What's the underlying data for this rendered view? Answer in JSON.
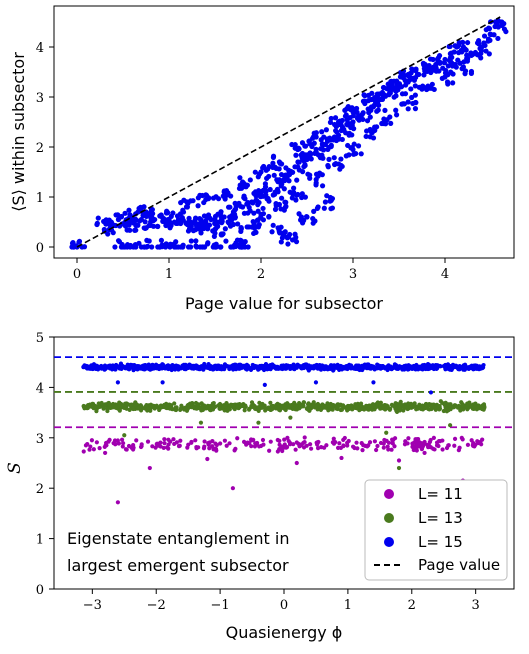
{
  "chart_data": [
    {
      "type": "scatter",
      "xlabel": "Page value for subsector",
      "ylabel": "⟨S⟩ within subsector",
      "xlim": [
        -0.25,
        4.75
      ],
      "ylim": [
        -0.22,
        4.82
      ],
      "xticks": [
        "0",
        "1",
        "2",
        "3",
        "4"
      ],
      "yticks": [
        "0",
        "1",
        "2",
        "3",
        "4"
      ],
      "grid": false,
      "colors": {
        "points": "#0000ee",
        "reference": "#000000"
      },
      "reference_line": {
        "style": "dashed",
        "x": [
          0,
          4.6
        ],
        "y": [
          0,
          4.6
        ]
      },
      "points": [
        [
          0.0,
          0.0
        ],
        [
          0.3,
          0.5
        ],
        [
          0.35,
          0.35
        ],
        [
          0.45,
          0.55
        ],
        [
          0.55,
          0.45
        ],
        [
          0.6,
          0.6
        ],
        [
          0.7,
          0.55
        ],
        [
          0.75,
          0.7
        ],
        [
          0.8,
          0.5
        ],
        [
          0.9,
          0.62
        ],
        [
          1.0,
          0.55
        ],
        [
          1.1,
          0.5
        ],
        [
          1.2,
          0.45
        ],
        [
          1.3,
          0.42
        ],
        [
          1.4,
          0.5
        ],
        [
          1.5,
          0.55
        ],
        [
          1.6,
          0.6
        ],
        [
          1.7,
          0.7
        ],
        [
          1.8,
          0.8
        ],
        [
          1.9,
          0.9
        ],
        [
          2.0,
          1.05
        ],
        [
          2.1,
          1.15
        ],
        [
          2.2,
          1.3
        ],
        [
          2.3,
          1.45
        ],
        [
          2.4,
          1.6
        ],
        [
          2.5,
          1.75
        ],
        [
          2.6,
          1.9
        ],
        [
          2.7,
          2.05
        ],
        [
          2.8,
          2.2
        ],
        [
          2.9,
          2.35
        ],
        [
          3.0,
          2.5
        ],
        [
          3.1,
          2.65
        ],
        [
          3.2,
          2.8
        ],
        [
          3.3,
          2.95
        ],
        [
          3.4,
          3.1
        ],
        [
          3.5,
          3.2
        ],
        [
          3.6,
          3.3
        ],
        [
          3.7,
          3.45
        ],
        [
          3.8,
          3.55
        ],
        [
          3.9,
          3.65
        ],
        [
          4.0,
          3.75
        ],
        [
          4.1,
          3.9
        ],
        [
          4.2,
          4.0
        ],
        [
          4.3,
          3.85
        ],
        [
          4.4,
          4.0
        ],
        [
          4.5,
          4.25
        ],
        [
          4.58,
          4.4
        ],
        [
          1.5,
          0.35
        ],
        [
          1.7,
          0.45
        ],
        [
          2.0,
          0.65
        ],
        [
          2.2,
          0.85
        ],
        [
          2.4,
          1.05
        ],
        [
          2.6,
          1.35
        ],
        [
          2.8,
          1.65
        ],
        [
          3.0,
          1.95
        ],
        [
          3.2,
          2.3
        ],
        [
          3.4,
          2.6
        ],
        [
          3.6,
          2.9
        ],
        [
          3.8,
          3.15
        ],
        [
          4.0,
          3.4
        ],
        [
          4.2,
          3.6
        ],
        [
          1.2,
          0.8
        ],
        [
          1.4,
          0.95
        ],
        [
          1.6,
          1.1
        ],
        [
          1.8,
          1.3
        ],
        [
          2.0,
          1.5
        ],
        [
          2.2,
          1.7
        ],
        [
          2.4,
          1.95
        ],
        [
          2.6,
          2.2
        ],
        [
          2.8,
          2.45
        ],
        [
          3.0,
          2.7
        ],
        [
          3.2,
          2.95
        ],
        [
          3.4,
          3.2
        ],
        [
          3.6,
          3.45
        ],
        [
          0.5,
          0.0
        ],
        [
          0.7,
          0.0
        ],
        [
          0.9,
          0.0
        ],
        [
          1.1,
          0.0
        ],
        [
          1.3,
          0.0
        ],
        [
          1.5,
          0.0
        ],
        [
          1.7,
          0.0
        ],
        [
          1.8,
          0.0
        ],
        [
          1.9,
          0.4
        ],
        [
          2.2,
          0.3
        ],
        [
          2.3,
          0.2
        ],
        [
          2.5,
          0.6
        ],
        [
          2.7,
          0.9
        ]
      ]
    },
    {
      "type": "scatter",
      "xlabel": "Quasienergy ϕ",
      "ylabel": "S",
      "xlim": [
        -3.6,
        3.6
      ],
      "ylim": [
        0,
        5
      ],
      "xticks": [
        "−3",
        "−2",
        "−1",
        "0",
        "1",
        "2",
        "3"
      ],
      "yticks": [
        "0",
        "1",
        "2",
        "3",
        "4",
        "5"
      ],
      "grid": false,
      "legend_position": "bottom-right",
      "annotation": [
        "Eigenstate entanglement in",
        "largest emergent subsector"
      ],
      "series": [
        {
          "name": "L= 11",
          "color": "#a000b0",
          "page_value": 3.21,
          "band_center": 2.87,
          "band_half_width": 0.12,
          "outliers": [
            [
              -2.6,
              1.72
            ],
            [
              -1.2,
              2.58
            ],
            [
              -0.8,
              2.0
            ],
            [
              0.2,
              2.5
            ],
            [
              0.9,
              2.6
            ],
            [
              1.8,
              2.55
            ],
            [
              2.8,
              2.15
            ],
            [
              -2.1,
              2.4
            ],
            [
              -2.8,
              2.7
            ],
            [
              2.2,
              2.7
            ]
          ]
        },
        {
          "name": "L= 13",
          "color": "#4a7a1e",
          "page_value": 3.91,
          "band_center": 3.62,
          "band_half_width": 0.07,
          "outliers": [
            [
              -2.5,
              3.05
            ],
            [
              -1.3,
              3.3
            ],
            [
              0.1,
              3.4
            ],
            [
              1.6,
              3.1
            ],
            [
              1.8,
              2.4
            ],
            [
              2.6,
              3.25
            ],
            [
              -0.4,
              3.3
            ]
          ]
        },
        {
          "name": "L= 15",
          "color": "#0000ee",
          "page_value": 4.6,
          "band_center": 4.4,
          "band_half_width": 0.05,
          "outliers": [
            [
              -2.6,
              4.1
            ],
            [
              -0.3,
              4.05
            ],
            [
              0.5,
              4.1
            ],
            [
              1.4,
              4.1
            ],
            [
              2.3,
              3.9
            ],
            [
              -1.9,
              4.1
            ]
          ]
        }
      ],
      "reference_label": "Page value"
    }
  ]
}
